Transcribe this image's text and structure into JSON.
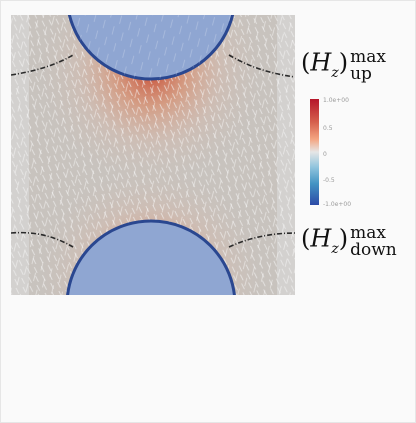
{
  "labels": {
    "up": {
      "open": "(",
      "symbol": "H",
      "subscript": "z",
      "close": ")",
      "superscript": "max",
      "lower": "up"
    },
    "down": {
      "open": "(",
      "symbol": "H",
      "subscript": "z",
      "close": ")",
      "superscript": "max",
      "lower": "down"
    }
  },
  "colorbar": {
    "ticks": [
      "1.0e+00",
      "0.5",
      "0",
      "-0.5",
      "-1.0e+00"
    ],
    "colors": {
      "max": "#b5162a",
      "mid": "#e6e6e6",
      "min": "#2c4aa6"
    }
  },
  "simulation": {
    "background_color": "#c8c3be",
    "circle_fill": "#8fa6d2",
    "circle_edge": "#2a4790"
  }
}
